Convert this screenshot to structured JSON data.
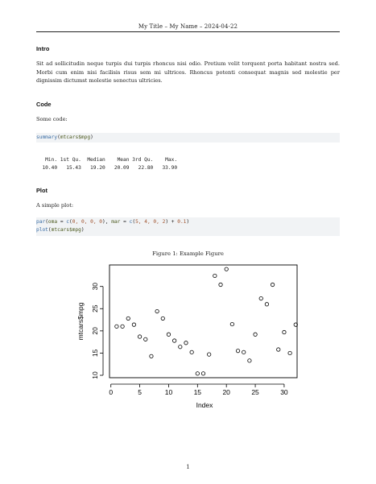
{
  "header": {
    "title": "My Title – My Name – 2024-04-22"
  },
  "intro": {
    "heading": "Intro",
    "paragraph": "Sit ad sollicitudin neque turpis dui turpis rhoncus nisi odio. Pretium velit torquent porta habitant nostra sed. Morbi cum enim nisi facilisis risus sem mi ultrices. Rhoncus potenti consequat magnis sed molestie per dignissim dictumst molestie senectus ultricies."
  },
  "code_section": {
    "heading": "Code",
    "intro": "Some code:",
    "code": {
      "fn": "summary",
      "open": "(",
      "arg": "mtcars$mpg",
      "close": ")"
    },
    "output_header": "   Min. 1st Qu.  Median    Mean 3rd Qu.    Max. ",
    "output_values": "  10.40   15.43   19.20   20.09   22.80   33.90 "
  },
  "plot_section": {
    "heading": "Plot",
    "intro": "A simple plot:",
    "code_line1": {
      "fn": "par",
      "p1": "(",
      "a1": "oma",
      "p2": " = ",
      "f2": "c",
      "p3": "(",
      "n1": "0, 0, 0, 0",
      "p4": "), ",
      "a2": "mar",
      "p5": " = ",
      "f3": "c",
      "p6": "(",
      "n2": "5, 4, 0, 2",
      "p7": ") + ",
      "n3": "0.1",
      "p8": ")"
    },
    "code_line2": {
      "fn": "plot",
      "open": "(",
      "arg": "mtcars$mpg",
      "close": ")"
    }
  },
  "figure": {
    "caption": "Figure 1: Example Figure",
    "chart_data": {
      "type": "scatter",
      "title": "",
      "xlabel": "Index",
      "ylabel": "mtcars$mpg",
      "xlim": [
        0,
        32
      ],
      "ylim": [
        10.4,
        33.9
      ],
      "x_ticks": [
        0,
        5,
        10,
        15,
        20,
        25,
        30
      ],
      "y_ticks": [
        10,
        15,
        20,
        25,
        30
      ],
      "x": [
        1,
        2,
        3,
        4,
        5,
        6,
        7,
        8,
        9,
        10,
        11,
        12,
        13,
        14,
        15,
        16,
        17,
        18,
        19,
        20,
        21,
        22,
        23,
        24,
        25,
        26,
        27,
        28,
        29,
        30,
        31,
        32
      ],
      "y": [
        21.0,
        21.0,
        22.8,
        21.4,
        18.7,
        18.1,
        14.3,
        24.4,
        22.8,
        19.2,
        17.8,
        16.4,
        17.3,
        15.2,
        10.4,
        10.4,
        14.7,
        32.4,
        30.4,
        33.9,
        21.5,
        15.5,
        15.2,
        13.3,
        19.2,
        27.3,
        26.0,
        30.4,
        15.8,
        19.7,
        15.0,
        21.4
      ],
      "grid": false,
      "legend": "none"
    }
  },
  "footer": {
    "page_number": "1"
  }
}
